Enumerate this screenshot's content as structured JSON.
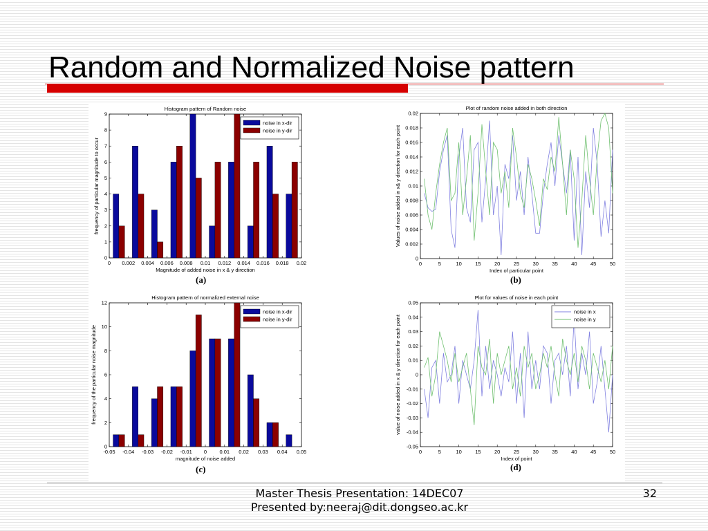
{
  "slide": {
    "title": "Random and Normalized Noise pattern",
    "footer_line1": "Master Thesis Presentation: 14DEC07",
    "footer_line2": "Presented by:neeraj@dit.dongseo.ac.kr",
    "page_number": "32",
    "accent_color": "#d60000"
  },
  "labels": {
    "a": "(a)",
    "b": "(b)",
    "c": "(c)",
    "d": "(d)"
  },
  "chart_data": [
    {
      "id": "a",
      "type": "bar",
      "title": "Histogram pattern of Random noise",
      "xlabel": "Magnitude of added noise in x & y direction",
      "ylabel": "frequency of particular magnitude to occur",
      "categories": [
        0.001,
        0.003,
        0.005,
        0.007,
        0.009,
        0.011,
        0.013,
        0.015,
        0.017,
        0.019
      ],
      "series": [
        {
          "name": "noise in x-dir",
          "color": "#0a0a9c",
          "values": [
            4,
            7,
            3,
            6,
            9,
            2,
            6,
            2,
            7,
            4
          ]
        },
        {
          "name": "noise in y-dir",
          "color": "#8b0000",
          "values": [
            2,
            4,
            1,
            7,
            5,
            6,
            9,
            6,
            4,
            6
          ]
        }
      ],
      "xlim": [
        0,
        0.02
      ],
      "ylim": [
        0,
        9
      ],
      "xticks": [
        "0",
        "0.002",
        "0.004",
        "0.006",
        "0.008",
        "0.01",
        "0.012",
        "0.014",
        "0.016",
        "0.018",
        "0.02"
      ],
      "yticks": [
        "0",
        "1",
        "2",
        "3",
        "4",
        "5",
        "6",
        "7",
        "8",
        "9"
      ],
      "legend": "top-right"
    },
    {
      "id": "b",
      "type": "line",
      "title": "Plot of random noise added in both direction",
      "xlabel": "Index of particular point",
      "ylabel": "Values of noise added in x& y direction for each point",
      "x": [
        1,
        2,
        3,
        4,
        5,
        6,
        7,
        8,
        9,
        10,
        11,
        12,
        13,
        14,
        15,
        16,
        17,
        18,
        19,
        20,
        21,
        22,
        23,
        24,
        25,
        26,
        27,
        28,
        29,
        30,
        31,
        32,
        33,
        34,
        35,
        36,
        37,
        38,
        39,
        40,
        41,
        42,
        43,
        44,
        45,
        46,
        47,
        48,
        49,
        50
      ],
      "series": [
        {
          "color": "#8080e0",
          "values": [
            0.009,
            0.007,
            0.0065,
            0.0068,
            0.012,
            0.015,
            0.017,
            0.004,
            0.0015,
            0.014,
            0.018,
            0.007,
            0.005,
            0.015,
            0.016,
            0.005,
            0.011,
            0.019,
            0.006,
            0.01,
            0.0005,
            0.013,
            0.011,
            0.017,
            0.008,
            0.012,
            0.006,
            0.014,
            0.009,
            0.0035,
            0.0035,
            0.009,
            0.013,
            0.016,
            0.01,
            0.017,
            0.013,
            0.009,
            0.015,
            0.0025,
            0.014,
            0.0005,
            0.012,
            0.007,
            0.018,
            0.013,
            0.003,
            0.008,
            0.0035,
            0.015
          ]
        },
        {
          "color": "#70c070",
          "values": [
            0.011,
            0.006,
            0.004,
            0.009,
            0.013,
            0.016,
            0.018,
            0.008,
            0.009,
            0.016,
            0.006,
            0.011,
            0.017,
            0.0025,
            0.009,
            0.0185,
            0.012,
            0.006,
            0.016,
            0.015,
            0.009,
            0.012,
            0.007,
            0.018,
            0.014,
            0.009,
            0.007,
            0.013,
            0.011,
            0.008,
            0.0045,
            0.011,
            0.0095,
            0.014,
            0.012,
            0.0195,
            0.013,
            0.006,
            0.015,
            0.011,
            0.0015,
            0.008,
            0.017,
            0.011,
            0.006,
            0.014,
            0.019,
            0.02,
            0.018,
            0.009
          ]
        }
      ],
      "xlim": [
        0,
        50
      ],
      "ylim": [
        0,
        0.02
      ],
      "xticks": [
        "0",
        "5",
        "10",
        "15",
        "20",
        "25",
        "30",
        "35",
        "40",
        "45",
        "50"
      ],
      "yticks": [
        "0",
        "0.002",
        "0.004",
        "0.006",
        "0.008",
        "0.01",
        "0.012",
        "0.014",
        "0.016",
        "0.018",
        "0.02"
      ]
    },
    {
      "id": "c",
      "type": "bar",
      "title": "Histogram pattern of normalized external noise",
      "xlabel": "magnitude of noise added",
      "ylabel": "frequency of the particular noise magnitude",
      "categories": [
        -0.045,
        -0.035,
        -0.025,
        -0.015,
        -0.005,
        0.005,
        0.015,
        0.025,
        0.035,
        0.045
      ],
      "series": [
        {
          "name": "noise in x-dir",
          "color": "#0a0a9c",
          "values": [
            1,
            5,
            4,
            5,
            8,
            9,
            9,
            6,
            2,
            1
          ]
        },
        {
          "name": "noise in y-dir",
          "color": "#8b0000",
          "values": [
            1,
            1,
            5,
            5,
            11,
            9,
            12,
            4,
            2,
            0
          ]
        }
      ],
      "xlim": [
        -0.05,
        0.05
      ],
      "ylim": [
        0,
        12
      ],
      "xticks": [
        "-0.05",
        "-0.04",
        "-0.03",
        "-0.02",
        "-0.01",
        "0",
        "0.01",
        "0.02",
        "0.03",
        "0.04",
        "0.05"
      ],
      "yticks": [
        "0",
        "2",
        "4",
        "6",
        "8",
        "10",
        "12"
      ],
      "legend": "top-right"
    },
    {
      "id": "d",
      "type": "line",
      "title": "Plot for values of noise in each point",
      "xlabel": "Index of point",
      "ylabel": "value of noise added in x & y direction for each point",
      "x": [
        1,
        2,
        3,
        4,
        5,
        6,
        7,
        8,
        9,
        10,
        11,
        12,
        13,
        14,
        15,
        16,
        17,
        18,
        19,
        20,
        21,
        22,
        23,
        24,
        25,
        26,
        27,
        28,
        29,
        30,
        31,
        32,
        33,
        34,
        35,
        36,
        37,
        38,
        39,
        40,
        41,
        42,
        43,
        44,
        45,
        46,
        47,
        48,
        49,
        50
      ],
      "series": [
        {
          "name": "noise in x",
          "color": "#8080e0",
          "values": [
            -0.01,
            -0.03,
            0.005,
            0.01,
            -0.02,
            0.015,
            -0.005,
            0.0,
            0.02,
            -0.02,
            0.01,
            0.0,
            -0.01,
            0.01,
            0.045,
            -0.015,
            0.02,
            -0.01,
            0.01,
            0.0,
            -0.015,
            0.005,
            -0.005,
            0.03,
            -0.02,
            0.015,
            -0.03,
            0.03,
            -0.01,
            0.01,
            -0.01,
            0.02,
            0.015,
            -0.02,
            0.01,
            0.015,
            0.0,
            0.02,
            -0.015,
            0.04,
            -0.01,
            0.015,
            0.0,
            0.03,
            -0.02,
            -0.005,
            0.02,
            -0.01,
            -0.04,
            0.0
          ]
        },
        {
          "name": "noise in y",
          "color": "#70c070",
          "values": [
            0.005,
            0.012,
            -0.015,
            0.0,
            0.03,
            0.02,
            0.01,
            -0.005,
            0.015,
            -0.005,
            0.005,
            0.015,
            -0.01,
            -0.035,
            0.02,
            0.005,
            0.0,
            0.025,
            -0.02,
            0.015,
            0.0,
            0.01,
            0.02,
            -0.01,
            0.005,
            -0.015,
            0.02,
            0.005,
            0.015,
            -0.01,
            0.0,
            0.015,
            0.005,
            0.02,
            0.0,
            -0.015,
            0.025,
            0.01,
            0.0,
            0.015,
            -0.005,
            0.02,
            0.01,
            -0.01,
            0.015,
            0.005,
            -0.005,
            0.01,
            -0.01,
            0.02
          ]
        }
      ],
      "xlim": [
        0,
        50
      ],
      "ylim": [
        -0.05,
        0.05
      ],
      "xticks": [
        "0",
        "5",
        "10",
        "15",
        "20",
        "25",
        "30",
        "35",
        "40",
        "45",
        "50"
      ],
      "yticks": [
        "-0.05",
        "-0.04",
        "-0.03",
        "-0.02",
        "-0.01",
        "0",
        "0.01",
        "0.02",
        "0.03",
        "0.04",
        "0.05"
      ],
      "legend": "top-right"
    }
  ]
}
